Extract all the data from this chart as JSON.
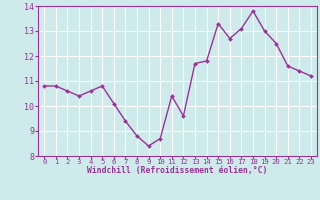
{
  "x": [
    0,
    1,
    2,
    3,
    4,
    5,
    6,
    7,
    8,
    9,
    10,
    11,
    12,
    13,
    14,
    15,
    16,
    17,
    18,
    19,
    20,
    21,
    22,
    23
  ],
  "y": [
    10.8,
    10.8,
    10.6,
    10.4,
    10.6,
    10.8,
    10.1,
    9.4,
    8.8,
    8.4,
    8.7,
    10.4,
    9.6,
    11.7,
    11.8,
    13.3,
    12.7,
    13.1,
    13.8,
    13.0,
    12.5,
    11.6,
    11.4,
    11.2
  ],
  "line_color": "#993399",
  "marker": "D",
  "marker_size": 2.0,
  "line_width": 1.0,
  "xlabel": "Windchill (Refroidissement éolien,°C)",
  "xlim": [
    -0.5,
    23.5
  ],
  "ylim": [
    8,
    14
  ],
  "yticks": [
    8,
    9,
    10,
    11,
    12,
    13,
    14
  ],
  "xtick_labels": [
    "0",
    "1",
    "2",
    "3",
    "4",
    "5",
    "6",
    "7",
    "8",
    "9",
    "10",
    "11",
    "12",
    "13",
    "14",
    "15",
    "16",
    "17",
    "18",
    "19",
    "20",
    "21",
    "22",
    "23"
  ],
  "bg_color": "#ceeaea",
  "grid_color": "#aadddd",
  "tick_color": "#993399",
  "label_color": "#993399"
}
